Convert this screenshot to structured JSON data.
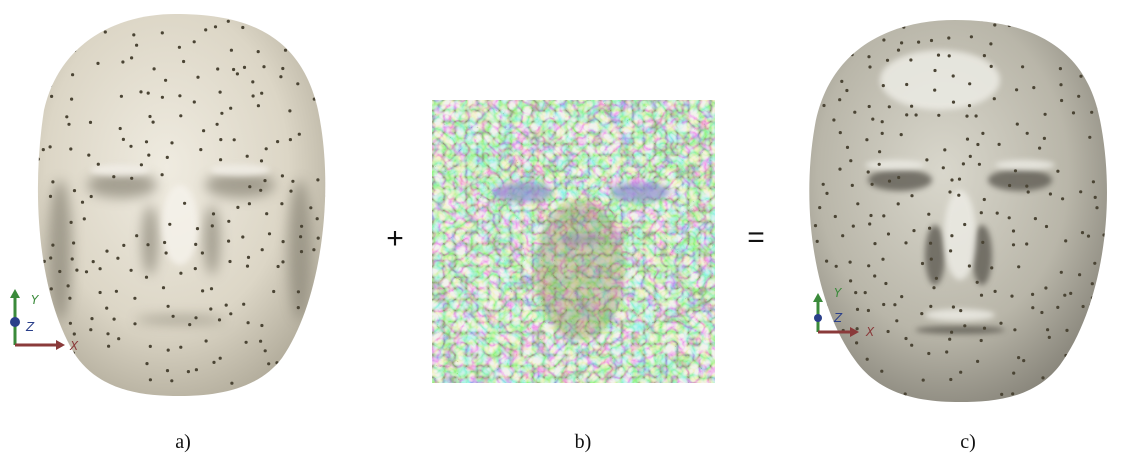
{
  "figure": {
    "panels": [
      {
        "label": "a)",
        "axes": {
          "y": "Y",
          "z": "Z",
          "x": "X"
        }
      },
      {
        "label": "b)"
      },
      {
        "label": "c)",
        "axes": {
          "y": "Y",
          "z": "Z",
          "x": "X"
        }
      }
    ],
    "operators": [
      "+",
      "="
    ]
  }
}
